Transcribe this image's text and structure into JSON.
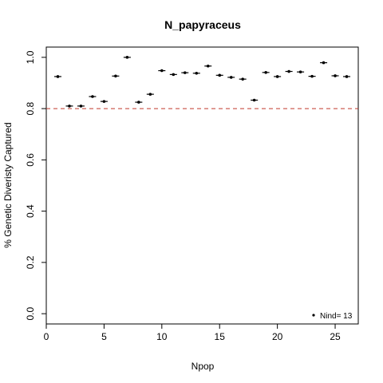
{
  "chart_data": {
    "type": "scatter",
    "title": "N_papyraceus",
    "xlabel": "Npop",
    "ylabel": "% Genetic Diveristy Captured",
    "xlim": [
      0,
      27
    ],
    "ylim": [
      -0.04,
      1.04
    ],
    "xticks": [
      0,
      5,
      10,
      15,
      20,
      25
    ],
    "yticks": [
      0.0,
      0.2,
      0.4,
      0.6,
      0.8,
      1.0
    ],
    "ytick_labels": [
      "0.0",
      "0.2",
      "0.4",
      "0.6",
      "0.8",
      "1.0"
    ],
    "reference_line": {
      "y": 0.8,
      "style": "dashed",
      "color": "#c0392b"
    },
    "legend": {
      "placement": "bottom-right",
      "label": "Nind= 13"
    },
    "grid": false,
    "points": [
      {
        "x": 1,
        "y": 0.925
      },
      {
        "x": 2,
        "y": 0.81
      },
      {
        "x": 3,
        "y": 0.81
      },
      {
        "x": 4,
        "y": 0.847
      },
      {
        "x": 5,
        "y": 0.828
      },
      {
        "x": 6,
        "y": 0.927
      },
      {
        "x": 7,
        "y": 1.0
      },
      {
        "x": 8,
        "y": 0.825
      },
      {
        "x": 9,
        "y": 0.856
      },
      {
        "x": 10,
        "y": 0.948
      },
      {
        "x": 11,
        "y": 0.933
      },
      {
        "x": 12,
        "y": 0.94
      },
      {
        "x": 13,
        "y": 0.938
      },
      {
        "x": 14,
        "y": 0.966
      },
      {
        "x": 15,
        "y": 0.93
      },
      {
        "x": 16,
        "y": 0.922
      },
      {
        "x": 17,
        "y": 0.915
      },
      {
        "x": 18,
        "y": 0.833
      },
      {
        "x": 19,
        "y": 0.941
      },
      {
        "x": 20,
        "y": 0.925
      },
      {
        "x": 21,
        "y": 0.945
      },
      {
        "x": 22,
        "y": 0.943
      },
      {
        "x": 23,
        "y": 0.926
      },
      {
        "x": 24,
        "y": 0.979
      },
      {
        "x": 25,
        "y": 0.928
      },
      {
        "x": 26,
        "y": 0.925
      }
    ]
  }
}
